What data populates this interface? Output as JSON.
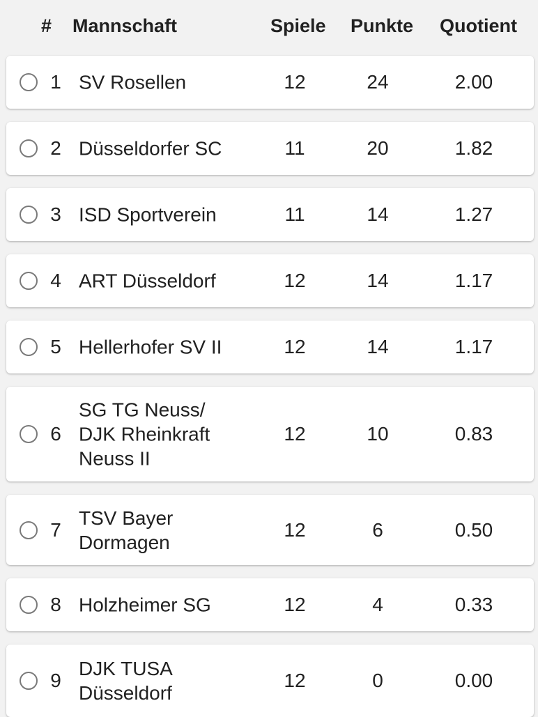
{
  "header": {
    "rank": "#",
    "team": "Mannschaft",
    "games": "Spiele",
    "points": "Punkte",
    "ratio": "Quotient"
  },
  "rows": [
    {
      "rank": "1",
      "team": "SV Rosellen",
      "games": "12",
      "points": "24",
      "ratio": "2.00"
    },
    {
      "rank": "2",
      "team": "Düsseldorfer SC",
      "games": "11",
      "points": "20",
      "ratio": "1.82"
    },
    {
      "rank": "3",
      "team": "ISD Sportverein",
      "games": "11",
      "points": "14",
      "ratio": "1.27"
    },
    {
      "rank": "4",
      "team": "ART Düsseldorf",
      "games": "12",
      "points": "14",
      "ratio": "1.17"
    },
    {
      "rank": "5",
      "team": "Hellerhofer SV II",
      "games": "12",
      "points": "14",
      "ratio": "1.17"
    },
    {
      "rank": "6",
      "team": "SG TG Neuss/ DJK Rheinkraft Neuss II",
      "games": "12",
      "points": "10",
      "ratio": "0.83"
    },
    {
      "rank": "7",
      "team": "TSV Bayer Dormagen",
      "games": "12",
      "points": "6",
      "ratio": "0.50"
    },
    {
      "rank": "8",
      "team": "Holzheimer SG",
      "games": "12",
      "points": "4",
      "ratio": "0.33"
    },
    {
      "rank": "9",
      "team": "DJK TUSA Düsseldorf",
      "games": "12",
      "points": "0",
      "ratio": "0.00"
    }
  ]
}
